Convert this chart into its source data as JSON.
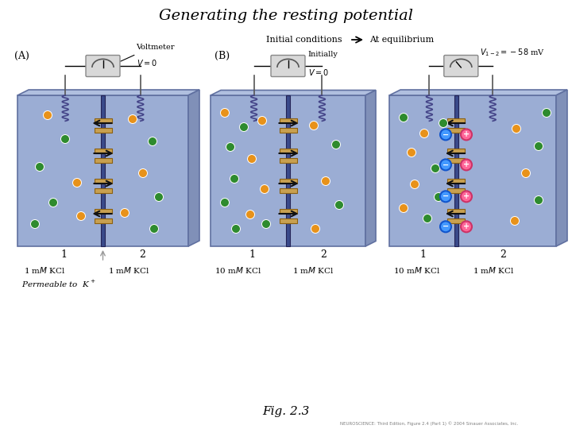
{
  "title": "Generating the resting potential",
  "fig_label": "Fig. 2.3",
  "footnote": "NEUROSCIENCE: Third Edition, Figure 2.4 (Part 1) © 2004 Sinauer Associates, Inc.",
  "bg_color": "#8B9DC3",
  "tank_face_color": "#9BADD4",
  "tank_edge_color": "#6070A0",
  "tank_top_color": "#B0BFDF",
  "tank_right_color": "#8090B8",
  "orange_ion": "#E8921A",
  "green_ion": "#2E8B2E",
  "blue_ion": "#4499FF",
  "pink_ion": "#FF6699",
  "membrane_color": "#3A4A8A",
  "channel_color": "#C8A050",
  "arrow_color": "#111111",
  "wire_color": "#555555",
  "voltmeter_face": "#D8D8D8",
  "voltmeter_edge": "#888888"
}
